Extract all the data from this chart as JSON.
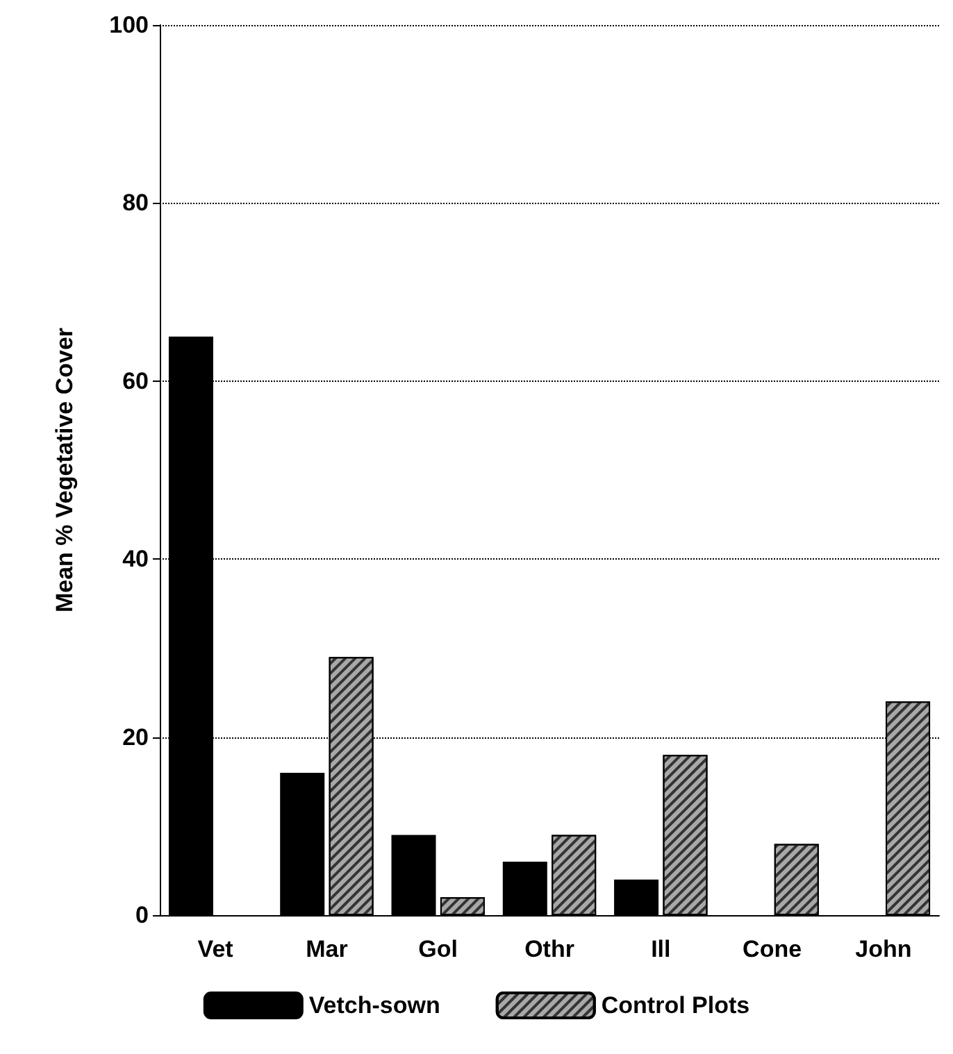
{
  "chart_data": {
    "type": "bar",
    "ylabel": "Mean % Vegetative Cover",
    "categories": [
      "Vet",
      "Mar",
      "Gol",
      "Othr",
      "Ill",
      "Cone",
      "John"
    ],
    "series": [
      {
        "name": "Vetch-sown",
        "color": "#000000",
        "values": [
          65,
          16,
          9,
          6,
          4,
          null,
          null
        ]
      },
      {
        "name": "Control Plots",
        "color": "#a8a8a8",
        "values": [
          null,
          29,
          2,
          9,
          18,
          8,
          24
        ]
      }
    ],
    "ylim": [
      0,
      100
    ],
    "yticks": [
      0,
      20,
      40,
      60,
      80,
      100
    ],
    "grid": "y",
    "legend": "bottom"
  }
}
